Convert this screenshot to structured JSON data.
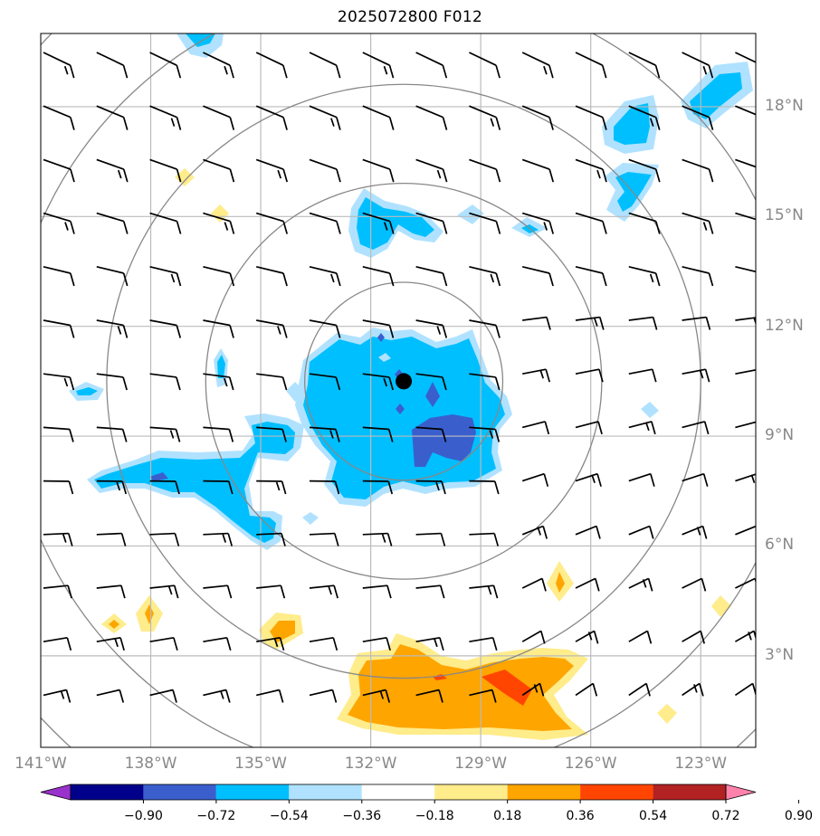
{
  "title": "2025072800 F012",
  "map": {
    "lon_range": [
      -141,
      -121.5
    ],
    "lat_range": [
      0.5,
      20
    ],
    "lon_ticks": [
      {
        "lon": -141,
        "label": "141°W"
      },
      {
        "lon": -138,
        "label": "138°W"
      },
      {
        "lon": -135,
        "label": "135°W"
      },
      {
        "lon": -132,
        "label": "132°W"
      },
      {
        "lon": -129,
        "label": "129°W"
      },
      {
        "lon": -126,
        "label": "126°W"
      },
      {
        "lon": -123,
        "label": "123°W"
      }
    ],
    "lat_ticks": [
      {
        "lat": 18,
        "label": "18°N"
      },
      {
        "lat": 15,
        "label": "15°N"
      },
      {
        "lat": 12,
        "label": "12°N"
      },
      {
        "lat": 9,
        "label": "9°N"
      },
      {
        "lat": 6,
        "label": "6°N"
      },
      {
        "lat": 3,
        "label": "3°N"
      }
    ],
    "storm_center": {
      "lon": -131.1,
      "lat": 10.5
    },
    "range_rings_deg": [
      2,
      4,
      6,
      8,
      10
    ],
    "wind_barbs": "uniform grid of wind barbs (westerly/north-westerly in north, south-westerly in south)"
  },
  "colorbar": {
    "levels": [
      "−0.90",
      "−0.72",
      "−0.54",
      "−0.36",
      "−0.18",
      "0.18",
      "0.36",
      "0.54",
      "0.72",
      "0.90"
    ],
    "colors": [
      "#9932cc",
      "#00008b",
      "#3a5fcd",
      "#00bfff",
      "#b0e2ff",
      "#ffffff",
      "#ffec8b",
      "#ffa500",
      "#ff4500",
      "#b22222",
      "#ff82ab"
    ]
  },
  "colors": {
    "grid": "#bbbbbb",
    "rings": "#888888",
    "labels": "#888888"
  }
}
